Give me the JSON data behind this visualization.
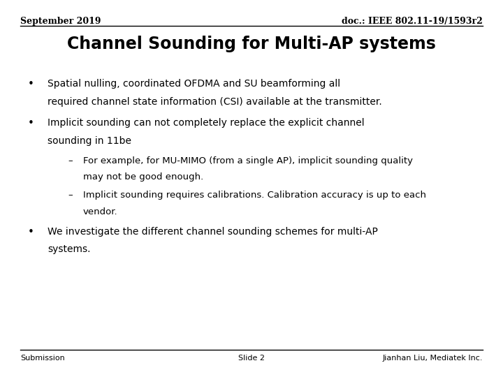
{
  "bg_color": "#ffffff",
  "header_left": "September 2019",
  "header_right": "doc.: IEEE 802.11-19/1593r2",
  "title": "Channel Sounding for Multi-AP systems",
  "bullet1_line1": "Spatial nulling, coordinated OFDMA and SU beamforming all",
  "bullet1_line2": "required channel state information (CSI) available at the transmitter.",
  "bullet2_line1": "Implicit sounding can not completely replace the explicit channel",
  "bullet2_line2": "sounding in 11be",
  "sub1_line1": "For example, for MU-MIMO (from a single AP), implicit sounding quality",
  "sub1_line2": "may not be good enough.",
  "sub2_line1": "Implicit sounding requires calibrations. Calibration accuracy is up to each",
  "sub2_line2": "vendor.",
  "bullet3_line1": "We investigate the different channel sounding schemes for multi-AP",
  "bullet3_line2": "systems.",
  "footer_left": "Submission",
  "footer_center": "Slide 2",
  "footer_right": "Jianhan Liu, Mediatek Inc.",
  "text_color": "#000000",
  "header_fontsize": 9,
  "title_fontsize": 17,
  "body_fontsize": 10,
  "sub_fontsize": 9.5,
  "footer_fontsize": 8
}
